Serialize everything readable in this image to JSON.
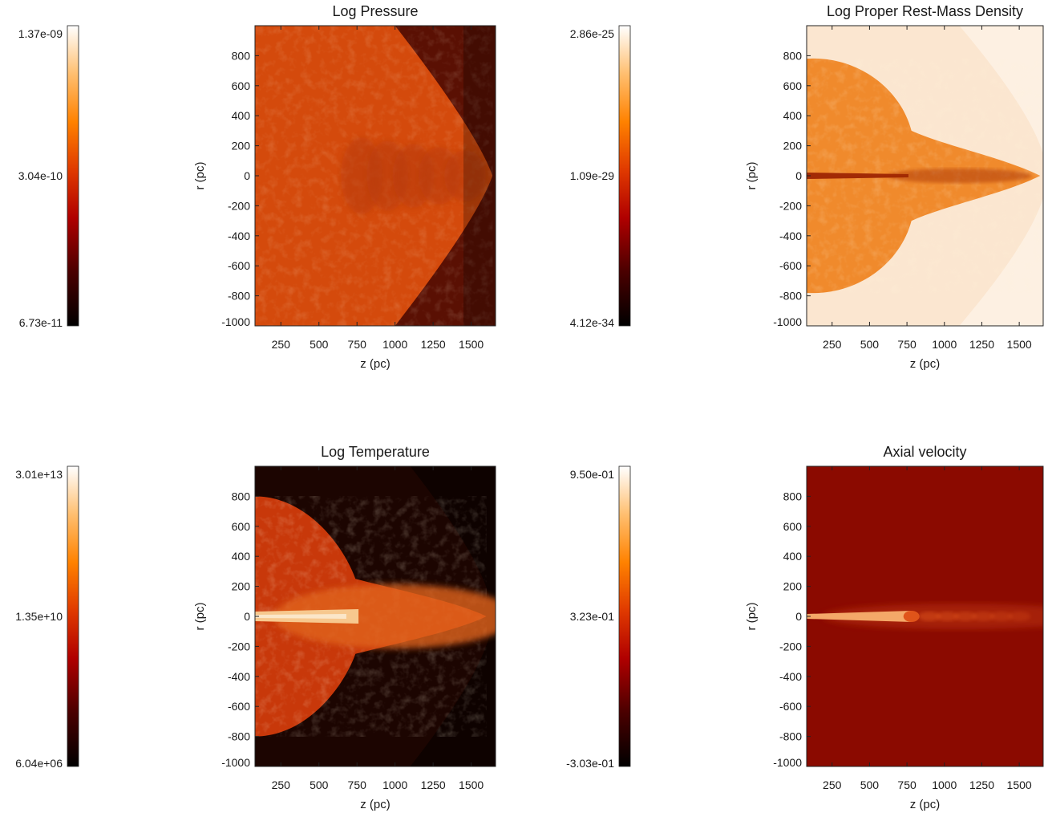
{
  "chart_data": [
    {
      "type": "heatmap",
      "title": "Log Pressure",
      "xlabel": "z (pc)",
      "ylabel": "r (pc)",
      "xlim": [
        80,
        1660
      ],
      "ylim": [
        -1000,
        1000
      ],
      "xticks": [
        250,
        500,
        750,
        1000,
        1250,
        1500
      ],
      "yticks": [
        800,
        600,
        400,
        200,
        0,
        -200,
        -400,
        -600,
        -800,
        -1000
      ],
      "colorbar": {
        "labels": [
          "1.37e-09",
          "3.04e-10",
          "6.73e-11"
        ],
        "colormap": "hot"
      },
      "features": {
        "kind": "pressure",
        "bow_tip_z": 1640,
        "bow_half_width_r": 1000,
        "bow_start_z": 1000
      },
      "colors": {
        "ambient": "#5a1003",
        "cocoon": "#d44a0c",
        "cocoon_light": "#e05a14",
        "spine": "#b83a08"
      }
    },
    {
      "type": "heatmap",
      "title": "Log Proper Rest-Mass Density",
      "xlabel": "z (pc)",
      "ylabel": "r (pc)",
      "xlim": [
        80,
        1660
      ],
      "ylim": [
        -1000,
        1000
      ],
      "xticks": [
        250,
        500,
        750,
        1000,
        1250,
        1500
      ],
      "yticks": [
        800,
        600,
        400,
        200,
        0,
        -200,
        -400,
        -600,
        -800,
        -1000
      ],
      "colorbar": {
        "labels": [
          "2.86e-25",
          "1.09e-29",
          "4.12e-34"
        ],
        "colormap": "hot"
      },
      "features": {
        "kind": "density",
        "cocoon_half_width_r": 780,
        "cocoon_neck_z": 780,
        "head_z": 1640,
        "jet_end_z": 760
      },
      "colors": {
        "ambient": "#fdf0e2",
        "ambient_far": "#fbe6d0",
        "cocoon": "#f08a2c",
        "cocoon_light": "#f7a04a",
        "spine": "#a22a05"
      }
    },
    {
      "type": "heatmap",
      "title": "Log Temperature",
      "xlabel": "z (pc)",
      "ylabel": "r (pc)",
      "xlim": [
        80,
        1660
      ],
      "ylim": [
        -1000,
        1000
      ],
      "xticks": [
        250,
        500,
        750,
        1000,
        1250,
        1500
      ],
      "yticks": [
        800,
        600,
        400,
        200,
        0,
        -200,
        -400,
        -600,
        -800,
        -1000
      ],
      "colorbar": {
        "labels": [
          "3.01e+13",
          "1.35e+10",
          "6.04e+06"
        ],
        "colormap": "hot"
      },
      "features": {
        "kind": "temperature",
        "cocoon_half_width_r": 800,
        "cocoon_neck_z": 740,
        "head_z": 1600,
        "jet_end_z": 760
      },
      "colors": {
        "ambient": "#0e0200",
        "cocoon": "#c8380a",
        "cocoon_light": "#e0641c",
        "spine": "#f7c88e",
        "core": "#fbe6c8"
      }
    },
    {
      "type": "heatmap",
      "title": "Axial velocity",
      "xlabel": "z (pc)",
      "ylabel": "r (pc)",
      "xlim": [
        80,
        1660
      ],
      "ylim": [
        -1000,
        1000
      ],
      "xticks": [
        250,
        500,
        750,
        1000,
        1250,
        1500
      ],
      "yticks": [
        800,
        600,
        400,
        200,
        0,
        -200,
        -400,
        -600,
        -800,
        -1000
      ],
      "colorbar": {
        "labels": [
          "9.50e-01",
          "3.23e-01",
          "-3.03e-01"
        ],
        "colormap": "hot"
      },
      "features": {
        "kind": "velocity",
        "jet_end_z": 780,
        "knots_end_z": 1600
      },
      "colors": {
        "ambient": "#8b0a00",
        "jet": "#f4a868",
        "jet_tip": "#e0541a",
        "knot": "#b02a08"
      }
    }
  ]
}
